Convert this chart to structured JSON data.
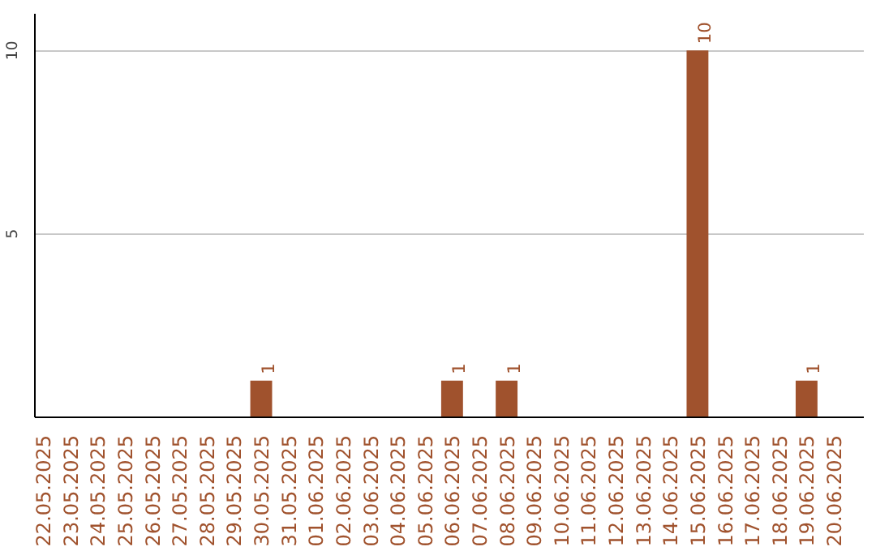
{
  "chart_data": {
    "type": "bar",
    "categories": [
      "22.05.2025",
      "23.05.2025",
      "24.05.2025",
      "25.05.2025",
      "26.05.2025",
      "27.05.2025",
      "28.05.2025",
      "29.05.2025",
      "30.05.2025",
      "31.05.2025",
      "01.06.2025",
      "02.06.2025",
      "03.06.2025",
      "04.06.2025",
      "05.06.2025",
      "06.06.2025",
      "07.06.2025",
      "08.06.2025",
      "09.06.2025",
      "10.06.2025",
      "11.06.2025",
      "12.06.2025",
      "13.06.2025",
      "14.06.2025",
      "15.06.2025",
      "16.06.2025",
      "17.06.2025",
      "18.06.2025",
      "19.06.2025",
      "20.06.2025"
    ],
    "values": [
      0,
      0,
      0,
      0,
      0,
      0,
      0,
      0,
      1,
      0,
      0,
      0,
      0,
      0,
      0,
      1,
      0,
      1,
      0,
      0,
      0,
      0,
      0,
      0,
      10,
      0,
      0,
      0,
      1,
      0
    ],
    "value_labels": [
      null,
      null,
      null,
      null,
      null,
      null,
      null,
      null,
      "1",
      null,
      null,
      null,
      null,
      null,
      null,
      "1",
      null,
      "1",
      null,
      null,
      null,
      null,
      null,
      null,
      "10",
      null,
      null,
      null,
      "1",
      null
    ],
    "color": "#a0522d",
    "ylim": [
      0,
      11
    ],
    "yticks": [
      5,
      10
    ],
    "grid": "y"
  }
}
